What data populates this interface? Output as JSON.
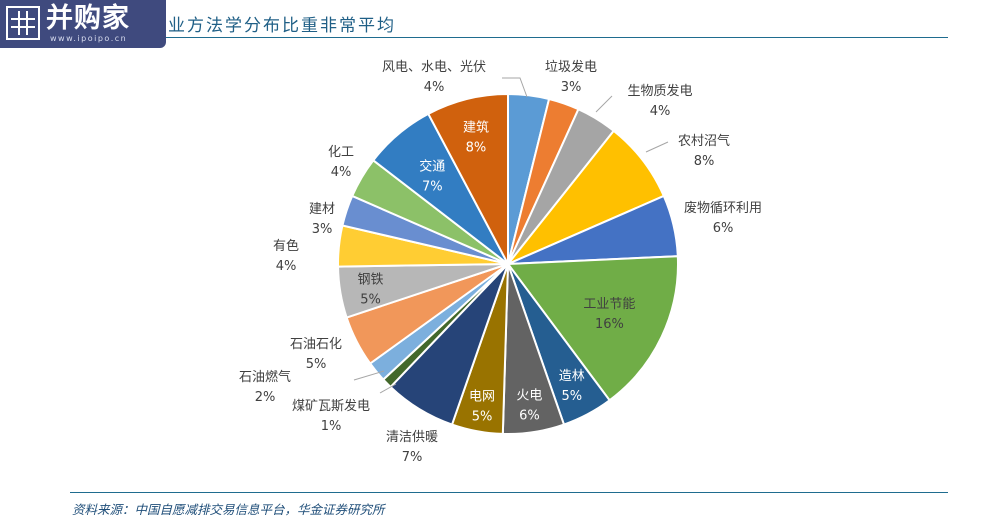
{
  "brand": {
    "name": "并购家",
    "url": "www.ipoipo.cn"
  },
  "title": "业方法学分布比重非常平均",
  "source": "资料来源：中国自愿减排交易信息平台，华金证券研究所",
  "chart_data": {
    "type": "pie",
    "title": "",
    "legend": "none",
    "slices": [
      {
        "label": "风电、水电、光伏",
        "value": 4,
        "value_label": "4%",
        "color": "#5b9bd5"
      },
      {
        "label": "垃圾发电",
        "value": 3,
        "value_label": "3%",
        "color": "#ed7d31"
      },
      {
        "label": "生物质发电",
        "value": 4,
        "value_label": "4%",
        "color": "#a5a5a5"
      },
      {
        "label": "农村沼气",
        "value": 8,
        "value_label": "8%",
        "color": "#ffc000"
      },
      {
        "label": "废物循环利用",
        "value": 6,
        "value_label": "6%",
        "color": "#4472c4"
      },
      {
        "label": "工业节能",
        "value": 16,
        "value_label": "16%",
        "color": "#70ad47"
      },
      {
        "label": "造林",
        "value": 5,
        "value_label": "5%",
        "color": "#255e91"
      },
      {
        "label": "火电",
        "value": 6,
        "value_label": "6%",
        "color": "#636363"
      },
      {
        "label": "电网",
        "value": 5,
        "value_label": "5%",
        "color": "#997300"
      },
      {
        "label": "清洁供暖",
        "value": 7,
        "value_label": "7%",
        "color": "#264478"
      },
      {
        "label": "煤矿瓦斯发电",
        "value": 1,
        "value_label": "1%",
        "color": "#43682b"
      },
      {
        "label": "石油燃气",
        "value": 2,
        "value_label": "2%",
        "color": "#7cafdd"
      },
      {
        "label": "石油石化",
        "value": 5,
        "value_label": "5%",
        "color": "#f1975a"
      },
      {
        "label": "钢铁",
        "value": 5,
        "value_label": "5%",
        "color": "#b7b7b7"
      },
      {
        "label": "有色",
        "value": 4,
        "value_label": "4%",
        "color": "#ffcd33"
      },
      {
        "label": "建材",
        "value": 3,
        "value_label": "3%",
        "color": "#698ed0"
      },
      {
        "label": "化工",
        "value": 4,
        "value_label": "4%",
        "color": "#8cc168"
      },
      {
        "label": "交通",
        "value": 7,
        "value_label": "7%",
        "color": "#327dc2"
      },
      {
        "label": "建筑",
        "value": 8,
        "value_label": "8%",
        "color": "#d0610d"
      }
    ]
  }
}
